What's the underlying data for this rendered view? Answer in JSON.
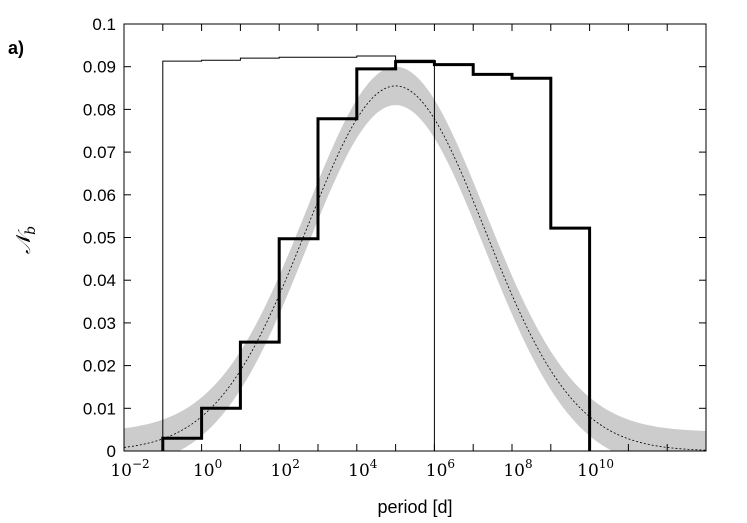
{
  "chart_data": {
    "type": "line",
    "panel_label": "a)",
    "xlabel": "period [d]",
    "ylabel": "𝒩",
    "ylabel_sub": "b",
    "x_scale": "log10",
    "xlim": [
      0.01,
      10000000000000
    ],
    "ylim": [
      0,
      0.1
    ],
    "x_ticks": [
      {
        "base": "10",
        "exp": "−2"
      },
      {
        "base": "10",
        "exp": "0"
      },
      {
        "base": "10",
        "exp": "2"
      },
      {
        "base": "10",
        "exp": "4"
      },
      {
        "base": "10",
        "exp": "6"
      },
      {
        "base": "10",
        "exp": "8"
      },
      {
        "base": "10",
        "exp": "10"
      }
    ],
    "y_ticks": [
      "0",
      "0.01",
      "0.02",
      "0.03",
      "0.04",
      "0.05",
      "0.06",
      "0.07",
      "0.08",
      "0.09",
      "0.1"
    ],
    "series": [
      {
        "style": "thick-step",
        "color": "#000000",
        "bin_edges": [
          0.1,
          1,
          10,
          100,
          1000,
          10000,
          100000,
          1000000,
          10000000,
          100000000,
          1000000000,
          10000000000
        ],
        "values": [
          0.003,
          0.01,
          0.0255,
          0.0497,
          0.0778,
          0.0895,
          0.0912,
          0.0905,
          0.0882,
          0.0873,
          0.0522
        ]
      },
      {
        "style": "thin-step",
        "color": "#000000",
        "bin_edges": [
          0.1,
          1,
          10,
          100,
          1000,
          10000,
          100000,
          1000000
        ],
        "values": [
          0.0913,
          0.0915,
          0.092,
          0.0922,
          0.0922,
          0.0925,
          0.0915
        ]
      },
      {
        "style": "gaussian-band",
        "color": "#cccccc",
        "log10_center": 5.0,
        "log10_sigma": 2.3,
        "peak": 0.0855,
        "band_half_width": 0.0045
      },
      {
        "style": "dashed-curve",
        "color": "#000000",
        "log10_center": 5.0,
        "log10_sigma": 2.3,
        "peak": 0.0855
      }
    ]
  }
}
